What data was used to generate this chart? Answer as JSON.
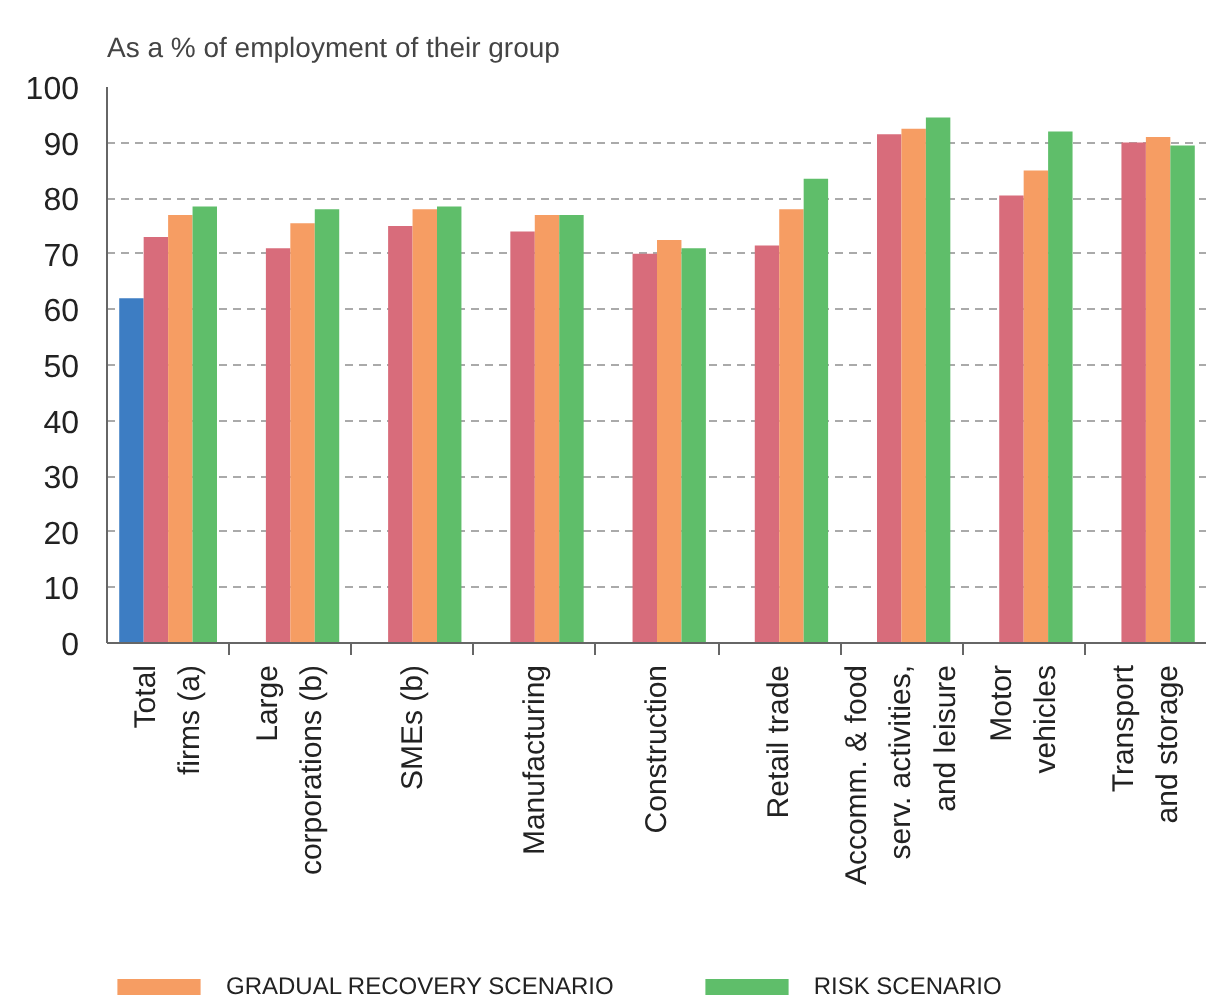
{
  "chart_data": {
    "type": "bar",
    "title": "As a % of employment of their group",
    "categories": [
      "Total\nfirms (a)",
      "Large\ncorporations (b)",
      "SMEs (b)",
      "Manufacturing",
      "Construction",
      "Retail trade",
      "Accomm. & food\nserv. activities,\nand leisure",
      "Motor\nvehicles",
      "Transport\nand storage"
    ],
    "series": [
      {
        "color": "#3d7dc3",
        "values": [
          62,
          null,
          null,
          null,
          null,
          null,
          null,
          null,
          null
        ]
      },
      {
        "color": "#d86c7b",
        "values": [
          73,
          71,
          75,
          74,
          70,
          71.5,
          91.5,
          80.5,
          90
        ]
      },
      {
        "name": "GRADUAL RECOVERY SCENARIO",
        "color": "#f69d63",
        "values": [
          77,
          75.5,
          78,
          77,
          72.5,
          78,
          92.5,
          85,
          91
        ]
      },
      {
        "name": "RISK SCENARIO",
        "color": "#5fbe6a",
        "values": [
          78.5,
          78,
          78.5,
          77,
          71,
          83.5,
          94.5,
          92,
          89.5
        ]
      }
    ],
    "ylim": [
      0,
      100
    ],
    "yticks": [
      0,
      10,
      20,
      30,
      40,
      50,
      60,
      70,
      80,
      90,
      100
    ],
    "grid": "y",
    "legend": "bottom"
  }
}
